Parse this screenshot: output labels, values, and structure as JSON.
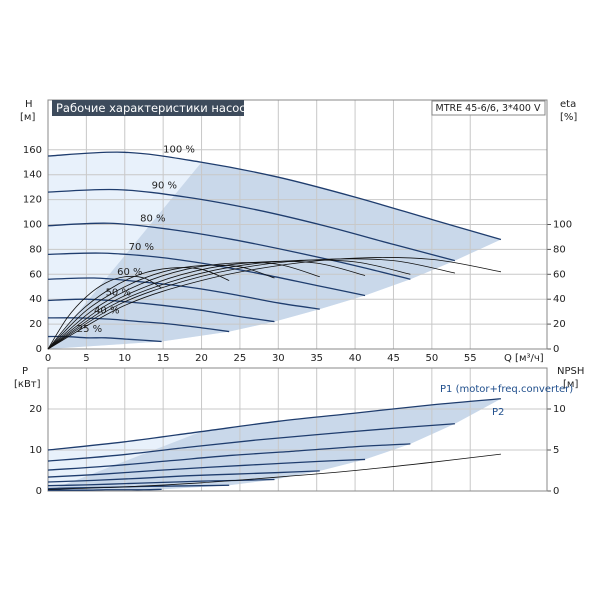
{
  "chart_data": [
    {
      "type": "line",
      "title": "Рабочие характеристики насоса",
      "model": "MTRE 45-6/6, 3*400 V",
      "ylabel": "H",
      "yunit": "[м]",
      "y2label": "eta",
      "y2unit": "[%]",
      "xlabel": "Q [м³/ч]",
      "xlim": [
        0,
        65
      ],
      "xticks": [
        0,
        5,
        10,
        15,
        20,
        25,
        30,
        35,
        40,
        45,
        50,
        55
      ],
      "ylim": [
        0,
        200
      ],
      "yticks": [
        0,
        20,
        40,
        60,
        80,
        100,
        120,
        140,
        160
      ],
      "y2lim": [
        0,
        200
      ],
      "y2ticks": [
        0,
        20,
        40,
        60,
        80,
        100
      ],
      "grid": true,
      "series": [
        {
          "name": "100 %",
          "color": "#1f3d6e",
          "x": [
            0,
            10,
            20,
            30,
            40,
            50,
            59
          ],
          "values": [
            155,
            158,
            150,
            138,
            122,
            104,
            88
          ]
        },
        {
          "name": "90 %",
          "color": "#1f3d6e",
          "x": [
            0,
            9,
            18,
            27,
            36,
            45,
            53
          ],
          "values": [
            126,
            128,
            122,
            112,
            99,
            84,
            71
          ]
        },
        {
          "name": "80 %",
          "color": "#1f3d6e",
          "x": [
            0,
            8,
            16,
            24,
            32,
            40,
            47.2
          ],
          "values": [
            99,
            101,
            96,
            88,
            78,
            67,
            56
          ]
        },
        {
          "name": "70 %",
          "color": "#1f3d6e",
          "x": [
            0,
            7,
            14,
            21,
            28,
            35,
            41.3
          ],
          "values": [
            76,
            77,
            74,
            68,
            60,
            51,
            43
          ]
        },
        {
          "name": "60 %",
          "color": "#1f3d6e",
          "x": [
            0,
            6,
            12,
            18,
            24,
            30,
            35.4
          ],
          "values": [
            56,
            57,
            54,
            50,
            44,
            37,
            32
          ]
        },
        {
          "name": "50 %",
          "color": "#1f3d6e",
          "x": [
            0,
            5,
            10,
            15,
            20,
            25,
            29.5
          ],
          "values": [
            39,
            40,
            38,
            35,
            31,
            26,
            22
          ]
        },
        {
          "name": "40 %",
          "color": "#1f3d6e",
          "x": [
            0,
            4,
            8,
            12,
            16,
            20,
            23.6
          ],
          "values": [
            25,
            25,
            24,
            22,
            20,
            17,
            14
          ]
        },
        {
          "name": "25 %",
          "color": "#1f3d6e",
          "x": [
            0,
            2.5,
            5,
            7.5,
            10,
            12.5,
            14.8
          ],
          "values": [
            10,
            10,
            9,
            9,
            8,
            7,
            6
          ]
        },
        {
          "axis": "y2",
          "color": "#111111",
          "x": [
            0,
            10,
            20,
            30,
            40,
            50,
            59
          ],
          "values": [
            0,
            35,
            55,
            67,
            73,
            72,
            62
          ]
        },
        {
          "axis": "y2",
          "color": "#111111",
          "x": [
            0,
            9,
            18,
            27,
            36,
            45,
            53
          ],
          "values": [
            0,
            35,
            55,
            67,
            72,
            71,
            61
          ]
        },
        {
          "axis": "y2",
          "color": "#111111",
          "x": [
            0,
            8,
            16,
            24,
            32,
            40,
            47.2
          ],
          "values": [
            0,
            34,
            54,
            66,
            71,
            70,
            60
          ]
        },
        {
          "axis": "y2",
          "color": "#111111",
          "x": [
            0,
            7,
            14,
            21,
            28,
            35,
            41.3
          ],
          "values": [
            0,
            33,
            53,
            65,
            70,
            69,
            59
          ]
        },
        {
          "axis": "y2",
          "color": "#111111",
          "x": [
            0,
            6,
            12,
            18,
            24,
            30,
            35.4
          ],
          "values": [
            0,
            32,
            52,
            64,
            69,
            68,
            58
          ]
        },
        {
          "axis": "y2",
          "color": "#111111",
          "x": [
            0,
            5,
            10,
            15,
            20,
            25,
            29.5
          ],
          "values": [
            0,
            31,
            50,
            62,
            67,
            66,
            57
          ]
        },
        {
          "axis": "y2",
          "color": "#111111",
          "x": [
            0,
            4,
            8,
            12,
            16,
            20,
            23.6
          ],
          "values": [
            0,
            29,
            48,
            60,
            65,
            64,
            55
          ]
        },
        {
          "axis": "y2",
          "color": "#111111",
          "x": [
            0,
            2.5,
            5,
            7.5,
            10,
            12.5,
            14.8
          ],
          "values": [
            0,
            25,
            42,
            53,
            58,
            57,
            49
          ]
        }
      ]
    },
    {
      "type": "line",
      "ylabel": "P",
      "yunit": "[кВт]",
      "y2label": "NPSH",
      "y2unit": "[м]",
      "annotations": [
        "P1 (motor+freq.converter)",
        "P2"
      ],
      "xlim": [
        0,
        65
      ],
      "ylim": [
        0,
        30
      ],
      "yticks": [
        0,
        10,
        20
      ],
      "y2lim": [
        0,
        15
      ],
      "y2ticks": [
        0,
        5,
        10
      ],
      "grid": true,
      "series": [
        {
          "color": "#1f3d6e",
          "x": [
            0,
            10,
            20,
            30,
            40,
            50,
            59
          ],
          "values": [
            10,
            12,
            14.5,
            17,
            19,
            21,
            22.5
          ]
        },
        {
          "color": "#1f3d6e",
          "x": [
            0,
            9,
            18,
            27,
            36,
            45,
            53
          ],
          "values": [
            7.3,
            8.7,
            10.6,
            12.4,
            13.9,
            15.3,
            16.4
          ]
        },
        {
          "color": "#1f3d6e",
          "x": [
            0,
            8,
            16,
            24,
            32,
            40,
            47.2
          ],
          "values": [
            5.1,
            6.1,
            7.4,
            8.7,
            9.7,
            10.8,
            11.5
          ]
        },
        {
          "color": "#1f3d6e",
          "x": [
            0,
            7,
            14,
            21,
            28,
            35,
            41.3
          ],
          "values": [
            3.4,
            4.1,
            5,
            5.8,
            6.5,
            7.2,
            7.7
          ]
        },
        {
          "color": "#1f3d6e",
          "x": [
            0,
            6,
            12,
            18,
            24,
            30,
            35.4
          ],
          "values": [
            2.2,
            2.6,
            3.1,
            3.7,
            4.1,
            4.5,
            4.9
          ]
        },
        {
          "color": "#1f3d6e",
          "x": [
            0,
            5,
            10,
            15,
            20,
            25,
            29.5
          ],
          "values": [
            1.3,
            1.5,
            1.8,
            2.1,
            2.4,
            2.6,
            2.8
          ]
        },
        {
          "color": "#1f3d6e",
          "x": [
            0,
            4,
            8,
            12,
            16,
            20,
            23.6
          ],
          "values": [
            0.6,
            0.8,
            0.9,
            1.1,
            1.2,
            1.3,
            1.4
          ]
        },
        {
          "color": "#1f3d6e",
          "x": [
            0,
            2.5,
            5,
            7.5,
            10,
            12.5,
            14.8
          ],
          "values": [
            0.2,
            0.2,
            0.2,
            0.3,
            0.3,
            0.3,
            0.4
          ]
        },
        {
          "axis": "y2",
          "color": "#111111",
          "x": [
            0,
            10,
            20,
            30,
            40,
            50,
            59
          ],
          "values": [
            0.2,
            0.5,
            1,
            1.7,
            2.5,
            3.5,
            4.5
          ]
        }
      ]
    }
  ]
}
